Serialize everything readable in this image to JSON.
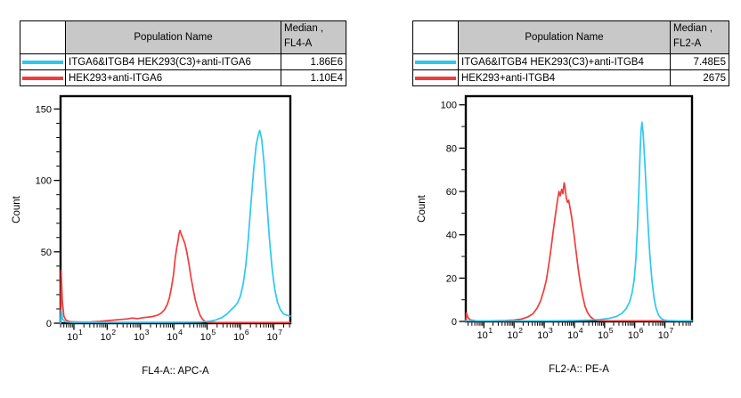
{
  "colors": {
    "cyan": "#2CC8F0",
    "red": "#F23B3B",
    "header_bg": "#C8C8C8",
    "axis": "#000000"
  },
  "panels": [
    {
      "table": {
        "header": {
          "population": "Population Name",
          "median_line1": "Median ,",
          "median_line2": "FL4-A"
        },
        "rows": [
          {
            "color": "cyan",
            "name": "ITGA6&ITGB4 HEK293(C3)+anti-ITGA6",
            "median": "1.86E6"
          },
          {
            "color": "red",
            "name": "HEK293+anti-ITGA6",
            "median": "1.10E4"
          }
        ]
      }
    },
    {
      "table": {
        "header": {
          "population": "Population Name",
          "median_line1": "Median ,",
          "median_line2": "FL2-A"
        },
        "rows": [
          {
            "color": "cyan",
            "name": "ITGA6&ITGB4 HEK293(C3)+anti-ITGB4",
            "median": "7.48E5"
          },
          {
            "color": "red",
            "name": "HEK293+anti-ITGB4",
            "median": "2675"
          }
        ]
      }
    }
  ],
  "chart_data": [
    {
      "type": "line",
      "subtype": "flow-cytometry-histogram-overlay",
      "xlabel": "FL4-A:: APC-A",
      "ylabel": "Count",
      "x_scale": "log10",
      "x_base": "10",
      "x_decades": [
        1,
        2,
        3,
        4,
        5,
        6,
        7
      ],
      "log_min": 0.6,
      "log_max": 7.5,
      "ylim": [
        0,
        150
      ],
      "ymax_draw": 159,
      "y_major": [
        0,
        50,
        100,
        150
      ],
      "y_minor_step": 10,
      "grid": false,
      "series": [
        {
          "name": "HEK293+anti-ITGA6",
          "color": "red",
          "points": [
            [
              0.6,
              0
            ],
            [
              0.62,
              37
            ],
            [
              0.65,
              16
            ],
            [
              0.7,
              5
            ],
            [
              0.76,
              2.2
            ],
            [
              0.9,
              1
            ],
            [
              1.2,
              0.8
            ],
            [
              1.5,
              0.9
            ],
            [
              1.8,
              1.3
            ],
            [
              2.0,
              1.8
            ],
            [
              2.2,
              2.2
            ],
            [
              2.4,
              2.6
            ],
            [
              2.6,
              3
            ],
            [
              2.75,
              3.6
            ],
            [
              2.9,
              3.2
            ],
            [
              3.05,
              3.8
            ],
            [
              3.2,
              4.2
            ],
            [
              3.35,
              4.6
            ],
            [
              3.5,
              5.5
            ],
            [
              3.62,
              7
            ],
            [
              3.72,
              9.5
            ],
            [
              3.8,
              13
            ],
            [
              3.87,
              18
            ],
            [
              3.93,
              25
            ],
            [
              3.99,
              34
            ],
            [
              4.04,
              45
            ],
            [
              4.09,
              53
            ],
            [
              4.13,
              58
            ],
            [
              4.16,
              63
            ],
            [
              4.19,
              65
            ],
            [
              4.23,
              62
            ],
            [
              4.28,
              59
            ],
            [
              4.33,
              56
            ],
            [
              4.39,
              50
            ],
            [
              4.45,
              42
            ],
            [
              4.51,
              33
            ],
            [
              4.58,
              24
            ],
            [
              4.65,
              16
            ],
            [
              4.72,
              10
            ],
            [
              4.79,
              5.5
            ],
            [
              4.86,
              2.8
            ],
            [
              4.94,
              1.3
            ],
            [
              5.02,
              0.7
            ],
            [
              5.3,
              0.5
            ],
            [
              5.8,
              0.5
            ],
            [
              6.4,
              0.5
            ],
            [
              7.0,
              0.5
            ],
            [
              7.5,
              0.5
            ]
          ]
        },
        {
          "name": "ITGA6&ITGB4 HEK293(C3)+anti-ITGA6",
          "color": "cyan",
          "points": [
            [
              0.6,
              0
            ],
            [
              0.62,
              9
            ],
            [
              0.66,
              3
            ],
            [
              0.74,
              1
            ],
            [
              0.95,
              0.6
            ],
            [
              1.6,
              0.6
            ],
            [
              2.6,
              0.6
            ],
            [
              3.6,
              0.6
            ],
            [
              4.4,
              0.7
            ],
            [
              4.8,
              0.9
            ],
            [
              5.05,
              1.3
            ],
            [
              5.25,
              2.2
            ],
            [
              5.45,
              4
            ],
            [
              5.6,
              6.5
            ],
            [
              5.72,
              9.5
            ],
            [
              5.82,
              11.5
            ],
            [
              5.92,
              14.5
            ],
            [
              6.0,
              19
            ],
            [
              6.08,
              27
            ],
            [
              6.16,
              40
            ],
            [
              6.24,
              60
            ],
            [
              6.32,
              85
            ],
            [
              6.4,
              108
            ],
            [
              6.47,
              124
            ],
            [
              6.53,
              131
            ],
            [
              6.58,
              135
            ],
            [
              6.64,
              129
            ],
            [
              6.71,
              112
            ],
            [
              6.79,
              86
            ],
            [
              6.87,
              60
            ],
            [
              6.95,
              39
            ],
            [
              7.03,
              24
            ],
            [
              7.11,
              15
            ],
            [
              7.2,
              9.5
            ],
            [
              7.3,
              6.5
            ],
            [
              7.4,
              5.5
            ],
            [
              7.5,
              5
            ]
          ]
        }
      ]
    },
    {
      "type": "line",
      "subtype": "flow-cytometry-histogram-overlay",
      "xlabel": "FL2-A:: PE-A",
      "ylabel": "Count",
      "x_scale": "log10",
      "x_base": "10",
      "x_decades": [
        1,
        2,
        3,
        4,
        5,
        6,
        7
      ],
      "log_min": 0.4,
      "log_max": 7.9,
      "ylim": [
        0,
        100
      ],
      "ymax_draw": 104,
      "y_major": [
        0,
        20,
        40,
        60,
        80,
        100
      ],
      "y_minor_step": 10,
      "grid": false,
      "series": [
        {
          "name": "HEK293+anti-ITGB4",
          "color": "red",
          "points": [
            [
              0.4,
              0
            ],
            [
              0.42,
              4
            ],
            [
              0.47,
              1.8
            ],
            [
              0.55,
              0.7
            ],
            [
              0.75,
              0.3
            ],
            [
              1.2,
              0.3
            ],
            [
              1.7,
              0.4
            ],
            [
              2.0,
              0.6
            ],
            [
              2.25,
              1.1
            ],
            [
              2.45,
              2
            ],
            [
              2.62,
              3.5
            ],
            [
              2.76,
              6
            ],
            [
              2.88,
              9.5
            ],
            [
              2.98,
              14
            ],
            [
              3.07,
              19
            ],
            [
              3.15,
              26
            ],
            [
              3.23,
              34
            ],
            [
              3.31,
              43
            ],
            [
              3.38,
              50
            ],
            [
              3.44,
              56
            ],
            [
              3.49,
              60
            ],
            [
              3.53,
              58
            ],
            [
              3.58,
              61
            ],
            [
              3.62,
              59
            ],
            [
              3.66,
              64
            ],
            [
              3.69,
              62
            ],
            [
              3.73,
              57
            ],
            [
              3.77,
              55
            ],
            [
              3.81,
              56
            ],
            [
              3.85,
              53
            ],
            [
              3.91,
              48
            ],
            [
              3.98,
              41
            ],
            [
              4.05,
              33
            ],
            [
              4.12,
              25
            ],
            [
              4.19,
              18
            ],
            [
              4.27,
              12
            ],
            [
              4.35,
              7
            ],
            [
              4.44,
              4
            ],
            [
              4.54,
              2
            ],
            [
              4.64,
              1
            ],
            [
              4.78,
              0.4
            ],
            [
              5.1,
              0.3
            ],
            [
              5.8,
              0.3
            ],
            [
              6.6,
              0.3
            ],
            [
              7.9,
              0.3
            ]
          ]
        },
        {
          "name": "ITGA6&ITGB4 HEK293(C3)+anti-ITGB4",
          "color": "cyan",
          "points": [
            [
              0.4,
              0.3
            ],
            [
              1.2,
              0.3
            ],
            [
              2.2,
              0.3
            ],
            [
              3.2,
              0.3
            ],
            [
              4.0,
              0.4
            ],
            [
              4.5,
              0.6
            ],
            [
              4.85,
              0.9
            ],
            [
              5.15,
              1.4
            ],
            [
              5.4,
              2.3
            ],
            [
              5.58,
              3.8
            ],
            [
              5.72,
              6
            ],
            [
              5.83,
              9
            ],
            [
              5.91,
              13
            ],
            [
              5.98,
              19
            ],
            [
              6.04,
              29
            ],
            [
              6.09,
              43
            ],
            [
              6.14,
              61
            ],
            [
              6.18,
              78
            ],
            [
              6.21,
              88
            ],
            [
              6.24,
              92
            ],
            [
              6.28,
              87
            ],
            [
              6.33,
              75
            ],
            [
              6.38,
              61
            ],
            [
              6.44,
              45
            ],
            [
              6.5,
              31
            ],
            [
              6.57,
              19
            ],
            [
              6.64,
              11
            ],
            [
              6.71,
              6
            ],
            [
              6.79,
              3
            ],
            [
              6.87,
              1.5
            ],
            [
              6.96,
              0.7
            ],
            [
              7.1,
              0.4
            ],
            [
              7.4,
              0.3
            ],
            [
              7.9,
              0.3
            ]
          ]
        }
      ]
    }
  ]
}
